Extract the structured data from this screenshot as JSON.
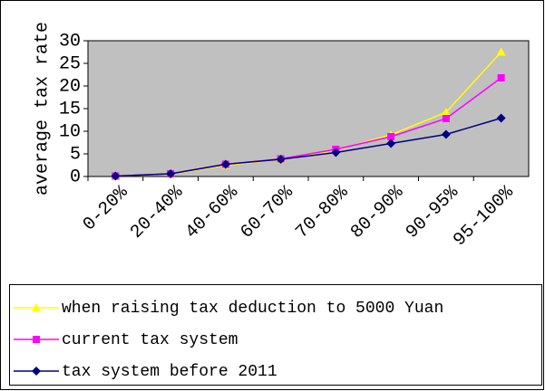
{
  "chart_data": {
    "type": "line",
    "y_label": "average tax rate",
    "categories": [
      "0-20%",
      "20-40%",
      "40-60%",
      "60-70%",
      "70-80%",
      "80-90%",
      "90-95%",
      "95-100%"
    ],
    "series": [
      {
        "name": "when raising tax deduction to 5000 Yuan",
        "color": "#ffff00",
        "marker": "triangle",
        "values": [
          0.1,
          0.5,
          2.5,
          3.8,
          5.8,
          9.2,
          14.2,
          27.5
        ]
      },
      {
        "name": "current tax system",
        "color": "#ff00ff",
        "marker": "square",
        "values": [
          0.1,
          0.6,
          2.7,
          3.9,
          6.0,
          8.8,
          12.8,
          21.8
        ]
      },
      {
        "name": "tax system before 2011",
        "color": "#000080",
        "marker": "diamond",
        "values": [
          0.1,
          0.6,
          2.7,
          3.8,
          5.3,
          7.3,
          9.3,
          12.9
        ]
      }
    ],
    "ylim": [
      0,
      30
    ],
    "yticks": [
      0,
      5,
      10,
      15,
      20,
      25,
      30
    ],
    "plot_background": "#c0c0c0",
    "legend": "bottom"
  }
}
